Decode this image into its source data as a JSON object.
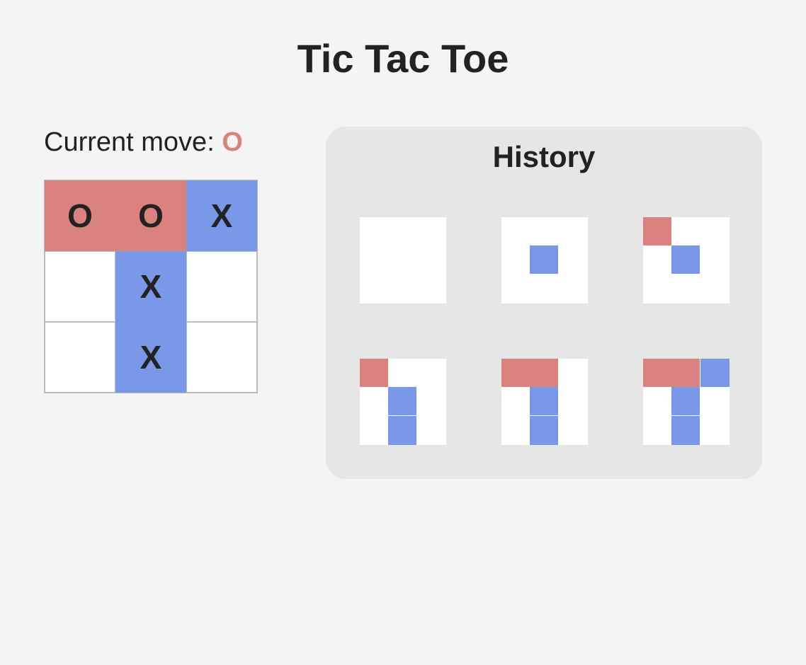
{
  "title": "Tic Tac Toe",
  "status": {
    "label": "Current move:",
    "player": "O"
  },
  "colors": {
    "background": "#f4f4f4",
    "o_color": "#d9827f",
    "x_color": "#7a98e8",
    "empty_cell": "#ffffff",
    "history_panel": "#e6e6e6"
  },
  "board": [
    "O",
    "O",
    "X",
    "",
    "X",
    "",
    "",
    "X",
    ""
  ],
  "history": {
    "title": "History",
    "moves": [
      [
        "",
        "",
        "",
        "",
        "",
        "",
        "",
        "",
        ""
      ],
      [
        "",
        "",
        "",
        "",
        "X",
        "",
        "",
        "",
        ""
      ],
      [
        "O",
        "",
        "",
        "",
        "X",
        "",
        "",
        "",
        ""
      ],
      [
        "O",
        "",
        "",
        "",
        "X",
        "",
        "",
        "X",
        ""
      ],
      [
        "O",
        "O",
        "",
        "",
        "X",
        "",
        "",
        "X",
        ""
      ],
      [
        "O",
        "O",
        "X",
        "",
        "X",
        "",
        "",
        "X",
        ""
      ]
    ]
  }
}
